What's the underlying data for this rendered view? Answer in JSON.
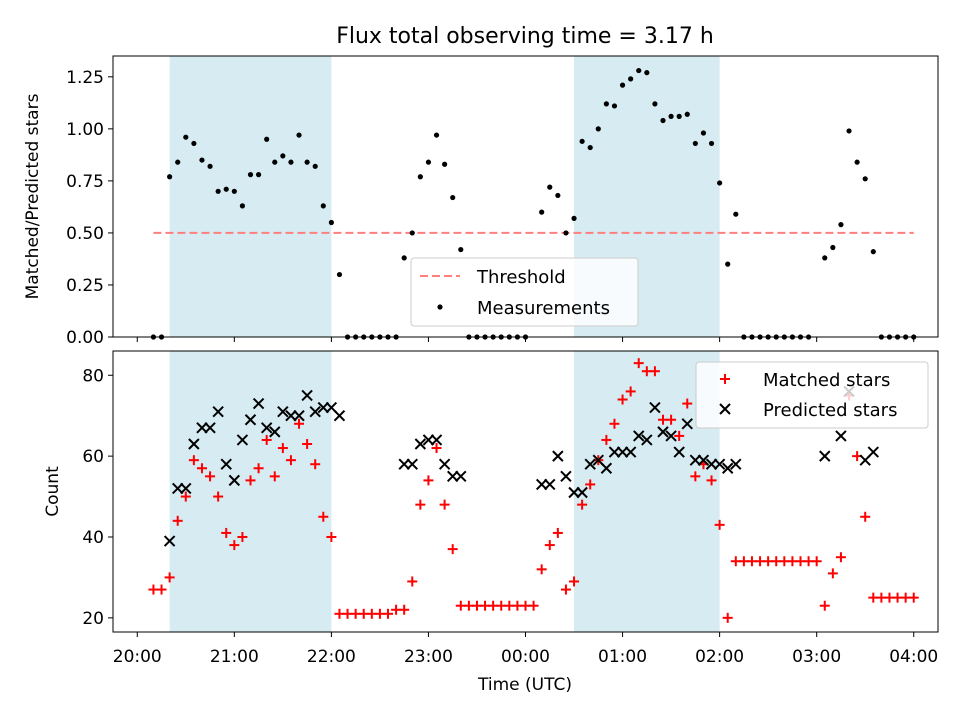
{
  "chart_data": [
    {
      "type": "scatter",
      "title": "Flux total observing time = 3.17 h",
      "xlabel": "",
      "ylabel": "Matched/Predicted stars",
      "xlim": [
        "19:45",
        "04:15"
      ],
      "ylim": [
        0,
        1.35
      ],
      "y_ticks": [
        "0.00",
        "0.25",
        "0.50",
        "0.75",
        "1.00",
        "1.25"
      ],
      "shaded_spans": [
        [
          "20:20",
          "22:00"
        ],
        [
          "00:30",
          "02:00"
        ]
      ],
      "threshold": {
        "value": 0.5,
        "from": "20:10",
        "to": "04:00",
        "color": "#ff7f7f"
      },
      "legend": {
        "position": "lower-center",
        "entries": [
          "Threshold",
          "Measurements"
        ]
      },
      "series": [
        {
          "name": "Measurements",
          "color": "#000000",
          "points": [
            [
              "20:10",
              0
            ],
            [
              "20:15",
              0
            ],
            [
              "20:20",
              0.77
            ],
            [
              "20:25",
              0.84
            ],
            [
              "20:30",
              0.96
            ],
            [
              "20:35",
              0.93
            ],
            [
              "20:40",
              0.85
            ],
            [
              "20:45",
              0.82
            ],
            [
              "20:50",
              0.7
            ],
            [
              "20:55",
              0.71
            ],
            [
              "21:00",
              0.7
            ],
            [
              "21:05",
              0.63
            ],
            [
              "21:10",
              0.78
            ],
            [
              "21:15",
              0.78
            ],
            [
              "21:20",
              0.95
            ],
            [
              "21:25",
              0.84
            ],
            [
              "21:30",
              0.87
            ],
            [
              "21:35",
              0.84
            ],
            [
              "21:40",
              0.97
            ],
            [
              "21:45",
              0.84
            ],
            [
              "21:50",
              0.82
            ],
            [
              "21:55",
              0.63
            ],
            [
              "22:00",
              0.55
            ],
            [
              "22:05",
              0.3
            ],
            [
              "22:10",
              0
            ],
            [
              "22:15",
              0
            ],
            [
              "22:20",
              0
            ],
            [
              "22:25",
              0
            ],
            [
              "22:30",
              0
            ],
            [
              "22:35",
              0
            ],
            [
              "22:40",
              0
            ],
            [
              "22:45",
              0.38
            ],
            [
              "22:50",
              0.5
            ],
            [
              "22:55",
              0.77
            ],
            [
              "23:00",
              0.84
            ],
            [
              "23:05",
              0.97
            ],
            [
              "23:10",
              0.83
            ],
            [
              "23:15",
              0.67
            ],
            [
              "23:20",
              0.42
            ],
            [
              "23:25",
              0
            ],
            [
              "23:30",
              0
            ],
            [
              "23:35",
              0
            ],
            [
              "23:40",
              0
            ],
            [
              "23:45",
              0
            ],
            [
              "23:50",
              0
            ],
            [
              "23:55",
              0
            ],
            [
              "00:00",
              0
            ],
            [
              "00:10",
              0.6
            ],
            [
              "00:15",
              0.72
            ],
            [
              "00:20",
              0.68
            ],
            [
              "00:25",
              0.5
            ],
            [
              "00:30",
              0.57
            ],
            [
              "00:35",
              0.94
            ],
            [
              "00:40",
              0.91
            ],
            [
              "00:45",
              1.0
            ],
            [
              "00:50",
              1.12
            ],
            [
              "00:55",
              1.11
            ],
            [
              "01:00",
              1.21
            ],
            [
              "01:05",
              1.24
            ],
            [
              "01:10",
              1.28
            ],
            [
              "01:15",
              1.27
            ],
            [
              "01:20",
              1.12
            ],
            [
              "01:25",
              1.04
            ],
            [
              "01:30",
              1.06
            ],
            [
              "01:35",
              1.06
            ],
            [
              "01:40",
              1.07
            ],
            [
              "01:45",
              0.93
            ],
            [
              "01:50",
              0.98
            ],
            [
              "01:55",
              0.93
            ],
            [
              "02:00",
              0.74
            ],
            [
              "02:05",
              0.35
            ],
            [
              "02:10",
              0.59
            ],
            [
              "02:15",
              0
            ],
            [
              "02:20",
              0
            ],
            [
              "02:25",
              0
            ],
            [
              "02:30",
              0
            ],
            [
              "02:35",
              0
            ],
            [
              "02:40",
              0
            ],
            [
              "02:45",
              0
            ],
            [
              "02:50",
              0
            ],
            [
              "02:55",
              0
            ],
            [
              "03:05",
              0.38
            ],
            [
              "03:10",
              0.43
            ],
            [
              "03:15",
              0.54
            ],
            [
              "03:20",
              0.99
            ],
            [
              "03:25",
              0.84
            ],
            [
              "03:30",
              0.76
            ],
            [
              "03:35",
              0.41
            ],
            [
              "03:40",
              0
            ],
            [
              "03:45",
              0
            ],
            [
              "03:50",
              0
            ],
            [
              "03:55",
              0
            ],
            [
              "04:00",
              0
            ]
          ]
        }
      ]
    },
    {
      "type": "scatter",
      "title": "",
      "xlabel": "Time (UTC)",
      "ylabel": "Count",
      "xlim": [
        "19:45",
        "04:15"
      ],
      "ylim": [
        16.5,
        86
      ],
      "x_ticks": [
        "20:00",
        "21:00",
        "22:00",
        "23:00",
        "00:00",
        "01:00",
        "02:00",
        "03:00",
        "04:00"
      ],
      "y_ticks": [
        "20",
        "40",
        "60",
        "80"
      ],
      "shaded_spans": [
        [
          "20:20",
          "22:00"
        ],
        [
          "00:30",
          "02:00"
        ]
      ],
      "legend": {
        "position": "top-right",
        "entries": [
          "Matched stars",
          "Predicted stars"
        ]
      },
      "series": [
        {
          "name": "Matched stars",
          "marker": "plus",
          "color": "#ff0000",
          "points": [
            [
              "20:10",
              27
            ],
            [
              "20:15",
              27
            ],
            [
              "20:20",
              30
            ],
            [
              "20:25",
              44
            ],
            [
              "20:30",
              50
            ],
            [
              "20:35",
              59
            ],
            [
              "20:40",
              57
            ],
            [
              "20:45",
              55
            ],
            [
              "20:50",
              50
            ],
            [
              "20:55",
              41
            ],
            [
              "21:00",
              38
            ],
            [
              "21:05",
              40
            ],
            [
              "21:10",
              54
            ],
            [
              "21:15",
              57
            ],
            [
              "21:20",
              64
            ],
            [
              "21:25",
              55
            ],
            [
              "21:30",
              62
            ],
            [
              "21:35",
              59
            ],
            [
              "21:40",
              68
            ],
            [
              "21:45",
              63
            ],
            [
              "21:50",
              58
            ],
            [
              "21:55",
              45
            ],
            [
              "22:00",
              40
            ],
            [
              "22:05",
              21
            ],
            [
              "22:10",
              21
            ],
            [
              "22:15",
              21
            ],
            [
              "22:20",
              21
            ],
            [
              "22:25",
              21
            ],
            [
              "22:30",
              21
            ],
            [
              "22:35",
              21
            ],
            [
              "22:40",
              22
            ],
            [
              "22:45",
              22
            ],
            [
              "22:50",
              29
            ],
            [
              "22:55",
              48
            ],
            [
              "23:00",
              54
            ],
            [
              "23:05",
              62
            ],
            [
              "23:10",
              48
            ],
            [
              "23:15",
              37
            ],
            [
              "23:20",
              23
            ],
            [
              "23:25",
              23
            ],
            [
              "23:30",
              23
            ],
            [
              "23:35",
              23
            ],
            [
              "23:40",
              23
            ],
            [
              "23:45",
              23
            ],
            [
              "23:50",
              23
            ],
            [
              "23:55",
              23
            ],
            [
              "00:00",
              23
            ],
            [
              "00:05",
              23
            ],
            [
              "00:10",
              32
            ],
            [
              "00:15",
              38
            ],
            [
              "00:20",
              41
            ],
            [
              "00:25",
              27
            ],
            [
              "00:30",
              29
            ],
            [
              "00:35",
              48
            ],
            [
              "00:40",
              53
            ],
            [
              "00:45",
              59
            ],
            [
              "00:50",
              64
            ],
            [
              "00:55",
              68
            ],
            [
              "01:00",
              74
            ],
            [
              "01:05",
              76
            ],
            [
              "01:10",
              83
            ],
            [
              "01:15",
              81
            ],
            [
              "01:20",
              81
            ],
            [
              "01:25",
              69
            ],
            [
              "01:30",
              69
            ],
            [
              "01:35",
              65
            ],
            [
              "01:40",
              73
            ],
            [
              "01:45",
              55
            ],
            [
              "01:50",
              58
            ],
            [
              "01:55",
              54
            ],
            [
              "02:00",
              43
            ],
            [
              "02:05",
              20
            ],
            [
              "02:10",
              34
            ],
            [
              "02:15",
              34
            ],
            [
              "02:20",
              34
            ],
            [
              "02:25",
              34
            ],
            [
              "02:30",
              34
            ],
            [
              "02:35",
              34
            ],
            [
              "02:40",
              34
            ],
            [
              "02:45",
              34
            ],
            [
              "02:50",
              34
            ],
            [
              "02:55",
              34
            ],
            [
              "03:00",
              34
            ],
            [
              "03:05",
              23
            ],
            [
              "03:10",
              31
            ],
            [
              "03:15",
              35
            ],
            [
              "03:20",
              75
            ],
            [
              "03:25",
              60
            ],
            [
              "03:30",
              45
            ],
            [
              "03:35",
              25
            ],
            [
              "03:40",
              25
            ],
            [
              "03:45",
              25
            ],
            [
              "03:50",
              25
            ],
            [
              "03:55",
              25
            ],
            [
              "04:00",
              25
            ]
          ]
        },
        {
          "name": "Predicted stars",
          "marker": "x",
          "color": "#000000",
          "points": [
            [
              "20:20",
              39
            ],
            [
              "20:25",
              52
            ],
            [
              "20:30",
              52
            ],
            [
              "20:35",
              63
            ],
            [
              "20:40",
              67
            ],
            [
              "20:45",
              67
            ],
            [
              "20:50",
              71
            ],
            [
              "20:55",
              58
            ],
            [
              "21:00",
              54
            ],
            [
              "21:05",
              64
            ],
            [
              "21:10",
              69
            ],
            [
              "21:15",
              73
            ],
            [
              "21:20",
              67
            ],
            [
              "21:25",
              66
            ],
            [
              "21:30",
              71
            ],
            [
              "21:35",
              70
            ],
            [
              "21:40",
              70
            ],
            [
              "21:45",
              75
            ],
            [
              "21:50",
              71
            ],
            [
              "21:55",
              72
            ],
            [
              "22:00",
              72
            ],
            [
              "22:05",
              70
            ],
            [
              "22:45",
              58
            ],
            [
              "22:50",
              58
            ],
            [
              "22:55",
              63
            ],
            [
              "23:00",
              64
            ],
            [
              "23:05",
              64
            ],
            [
              "23:10",
              58
            ],
            [
              "23:15",
              55
            ],
            [
              "23:20",
              55
            ],
            [
              "00:10",
              53
            ],
            [
              "00:15",
              53
            ],
            [
              "00:20",
              60
            ],
            [
              "00:25",
              55
            ],
            [
              "00:30",
              51
            ],
            [
              "00:35",
              51
            ],
            [
              "00:40",
              58
            ],
            [
              "00:45",
              59
            ],
            [
              "00:50",
              57
            ],
            [
              "00:55",
              61
            ],
            [
              "01:00",
              61
            ],
            [
              "01:05",
              61
            ],
            [
              "01:10",
              65
            ],
            [
              "01:15",
              64
            ],
            [
              "01:20",
              72
            ],
            [
              "01:25",
              66
            ],
            [
              "01:30",
              65
            ],
            [
              "01:35",
              61
            ],
            [
              "01:40",
              68
            ],
            [
              "01:45",
              59
            ],
            [
              "01:50",
              59
            ],
            [
              "01:55",
              58
            ],
            [
              "02:00",
              58
            ],
            [
              "02:05",
              57
            ],
            [
              "02:10",
              58
            ],
            [
              "03:05",
              60
            ],
            [
              "03:15",
              65
            ],
            [
              "03:20",
              76
            ],
            [
              "03:30",
              59
            ],
            [
              "03:35",
              61
            ]
          ]
        }
      ]
    }
  ]
}
